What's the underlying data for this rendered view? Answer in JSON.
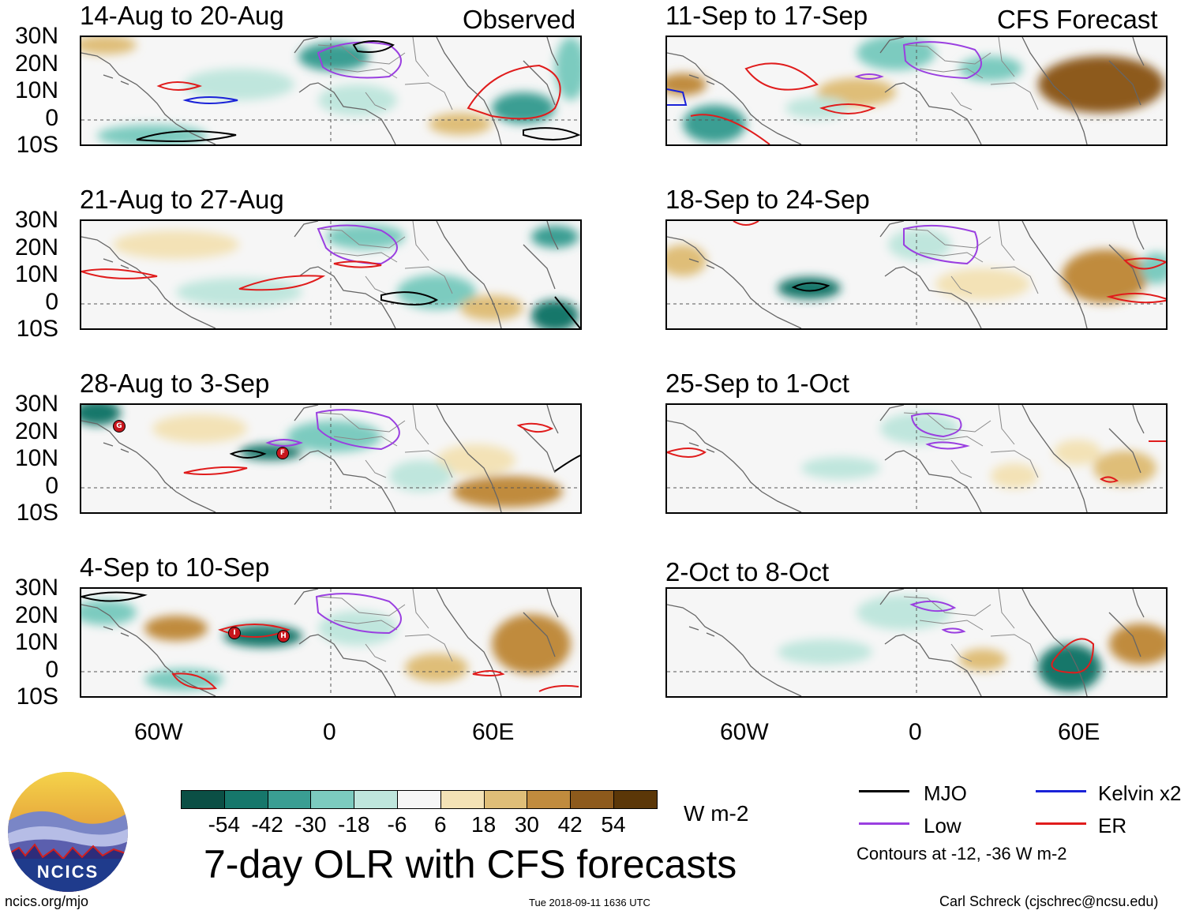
{
  "headers": {
    "observed": "Observed",
    "forecast": "CFS Forecast"
  },
  "panels_left": [
    {
      "title": "14-Aug to 20-Aug"
    },
    {
      "title": "21-Aug to 27-Aug"
    },
    {
      "title": "28-Aug to 3-Sep"
    },
    {
      "title": "4-Sep to 10-Sep"
    }
  ],
  "panels_right": [
    {
      "title": "11-Sep to 17-Sep"
    },
    {
      "title": "18-Sep to 24-Sep"
    },
    {
      "title": "25-Sep to 1-Oct"
    },
    {
      "title": "2-Oct to 8-Oct"
    }
  ],
  "lat_labels": [
    "30N",
    "20N",
    "10N",
    "0",
    "10S"
  ],
  "lon_labels": [
    "60W",
    "0",
    "60E"
  ],
  "colorbar": {
    "colors": [
      "#0b4f45",
      "#16776b",
      "#3a9e93",
      "#7ccbbf",
      "#bfe6dd",
      "#f6f6f6",
      "#f3e2b6",
      "#dfbe78",
      "#c08b3e",
      "#8d5a1c",
      "#5b3708"
    ],
    "labels": [
      "-54",
      "-42",
      "-30",
      "-18",
      "-6",
      "6",
      "18",
      "30",
      "42",
      "54"
    ],
    "unit": "W m-2"
  },
  "title": "7-day OLR with CFS forecasts",
  "legend": {
    "mjo": "MJO",
    "kelvin": "Kelvin x2",
    "low": "Low",
    "er": "ER",
    "note": "Contours at -12, -36 W m-2",
    "colors": {
      "mjo": "#000000",
      "kelvin": "#1a22d8",
      "low": "#9a3fe0",
      "er": "#e01c1c"
    }
  },
  "logo_text": "NCICS",
  "footer": {
    "left": "ncics.org/mjo",
    "center": "Tue 2018-09-11 1636 UTC",
    "right": "Carl Schreck (cjschrec@ncsu.edu)"
  },
  "storm_markers": {
    "panel3": [
      "G",
      "F"
    ],
    "panel4": [
      "I",
      "H"
    ]
  }
}
